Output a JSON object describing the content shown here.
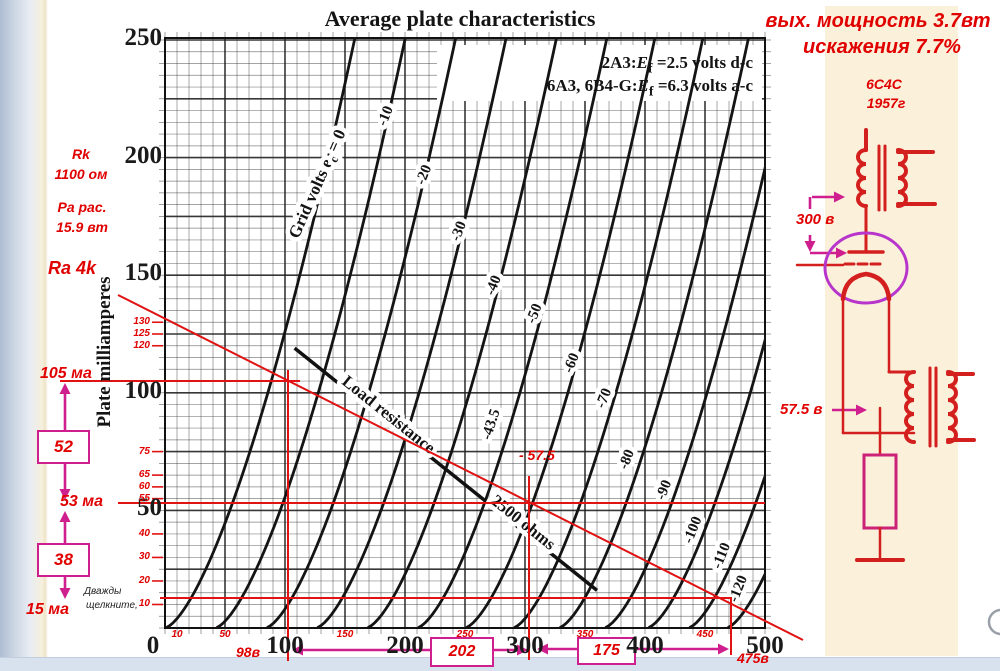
{
  "page": {
    "power_note_line1": "вых. мощность 3.7вт",
    "power_note_line2": "искажения 7.7%",
    "tube_name": "6С4С",
    "tube_year": "1957г",
    "double_click_line1": "Дважды",
    "double_click_line2": "щелкните,"
  },
  "left_annotations": {
    "rk_label": "Rk",
    "rk_value": "1100 ом",
    "pa_label": "Ра рас.",
    "pa_value": "15.9 вт",
    "ra_label": "Ra 4k",
    "i_max": "105 ма",
    "i_q": "53 ма",
    "i_min": "15 ма",
    "delta_top": "52",
    "delta_bottom": "38"
  },
  "bottom_annotations": {
    "v_min": "98в",
    "delta_left": "202",
    "delta_right": "175",
    "v_max": "475в"
  },
  "schematic": {
    "plate_voltage": "300 в",
    "grid_bias": "57.5 в"
  },
  "chart_data": {
    "type": "line",
    "title": "Average plate characteristics",
    "ylabel": "Plate milliamperes",
    "xlim": [
      0,
      500
    ],
    "ylim": [
      0,
      250
    ],
    "x_ticks": [
      0,
      100,
      200,
      300,
      400,
      500
    ],
    "y_ticks": [
      0,
      50,
      100,
      150,
      200,
      250
    ],
    "x_minor_red_labels": [
      10,
      50,
      150,
      250,
      350,
      450
    ],
    "y_minor_red_labels": [
      130,
      125,
      120,
      75,
      65,
      60,
      55,
      40,
      30,
      20,
      10
    ],
    "heading": [
      {
        "pre": "2A3:",
        "sym": "E",
        "sub": "f",
        "post": " =2.5 volts d-c"
      },
      {
        "pre": "6A3, 6B4-G:",
        "sym": "E",
        "sub": "f",
        "post": " =6.3 volts a-c"
      }
    ],
    "grid_label": {
      "pre": "Grid volts e",
      "sub": "c",
      "post": " = 0"
    },
    "curve_model": {
      "k": 0.126,
      "exp": 1.5
    },
    "curves": [
      {
        "ec": 0,
        "v0": 0,
        "label": "",
        "label_at": null
      },
      {
        "ec": -10,
        "v0": 42,
        "label": "-10",
        "label_at": [
          187,
          217
        ]
      },
      {
        "ec": -20,
        "v0": 84,
        "label": "-20",
        "label_at": [
          219,
          192
        ]
      },
      {
        "ec": -30,
        "v0": 126,
        "label": "-30",
        "label_at": [
          248,
          168
        ]
      },
      {
        "ec": -40,
        "v0": 168,
        "label": "-40",
        "label_at": [
          277,
          145
        ]
      },
      {
        "ec": -50,
        "v0": 210,
        "label": "-50",
        "label_at": [
          311,
          133
        ]
      },
      {
        "ec": -60,
        "v0": 250,
        "label": "-60",
        "label_at": [
          342,
          112
        ]
      },
      {
        "ec": -70,
        "v0": 290,
        "label": "-70",
        "label_at": [
          369,
          97
        ]
      },
      {
        "ec": -80,
        "v0": 328,
        "label": "-80",
        "label_at": [
          388,
          71
        ]
      },
      {
        "ec": -90,
        "v0": 366,
        "label": "-90",
        "label_at": [
          419,
          58
        ]
      },
      {
        "ec": -100,
        "v0": 402,
        "label": "-100",
        "label_at": [
          443,
          41
        ]
      },
      {
        "ec": -110,
        "v0": 436,
        "label": "-110",
        "label_at": [
          467,
          30
        ]
      },
      {
        "ec": -120,
        "v0": 468,
        "label": "-120",
        "label_at": [
          481,
          16
        ]
      }
    ],
    "printed_load_line": {
      "from": [
        108,
        119
      ],
      "to": [
        360,
        16
      ],
      "label1": "Load resistance",
      "label2": "2500 ohms"
    },
    "extra_bias_labels": [
      {
        "text": "-43.5",
        "at": [
          275,
          86
        ],
        "rot": -72,
        "color": "#141414"
      }
    ],
    "red_bias_label": "- 57.5",
    "red_load_line": {
      "label": "Ra 4k",
      "ohms": 4000
    },
    "operating_points": {
      "v_min": 98,
      "v_q": 300,
      "v_max": 475,
      "i_max": 105,
      "i_q": 53,
      "i_min": 15
    }
  }
}
